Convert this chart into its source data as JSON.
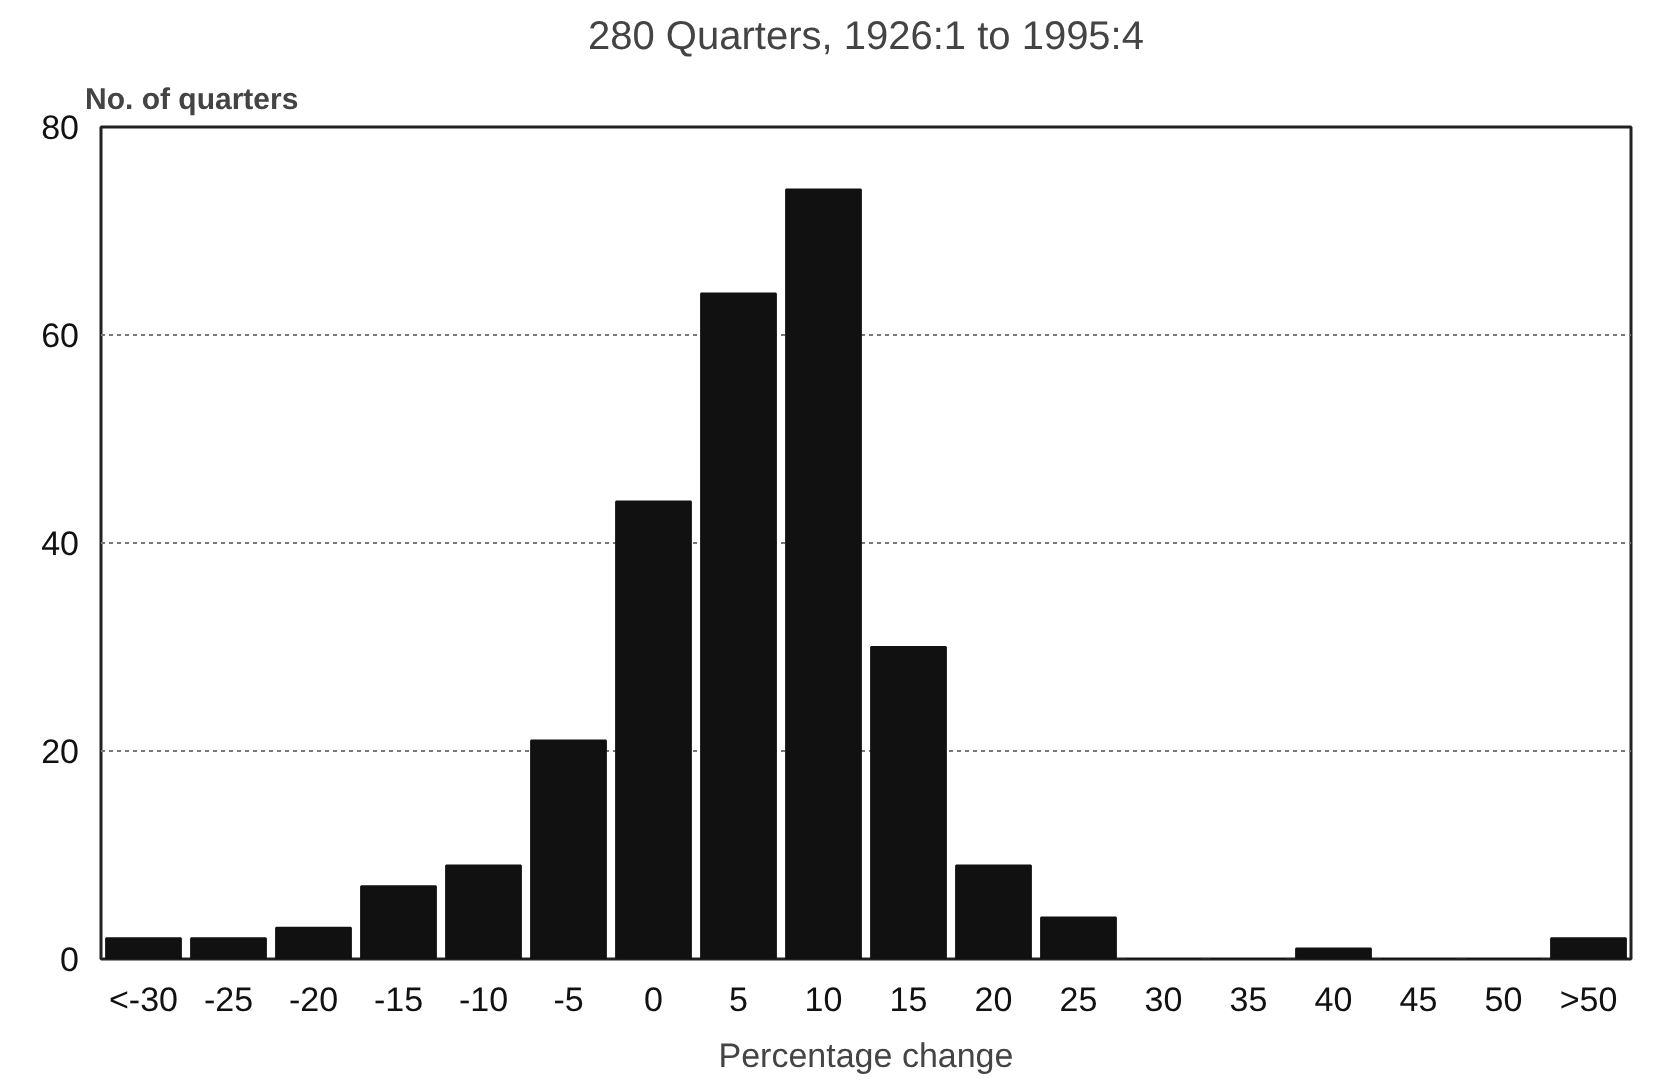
{
  "chart_data": {
    "type": "bar",
    "title": "280 Quarters, 1926:1 to 1995:4",
    "ylabel": "No. of quarters",
    "xlabel": "Percentage change",
    "categories": [
      "<-30",
      "-25",
      "-20",
      "-15",
      "-10",
      "-5",
      "0",
      "5",
      "10",
      "15",
      "20",
      "25",
      "30",
      "35",
      "40",
      "45",
      "50",
      ">50"
    ],
    "values": [
      2,
      2,
      3,
      7,
      9,
      21,
      44,
      64,
      74,
      30,
      9,
      4,
      0,
      0,
      1,
      0,
      0,
      2
    ],
    "color": "#111111",
    "ylim": [
      0,
      80
    ],
    "yticks": [
      0,
      20,
      40,
      60,
      80
    ],
    "grid": "y"
  }
}
